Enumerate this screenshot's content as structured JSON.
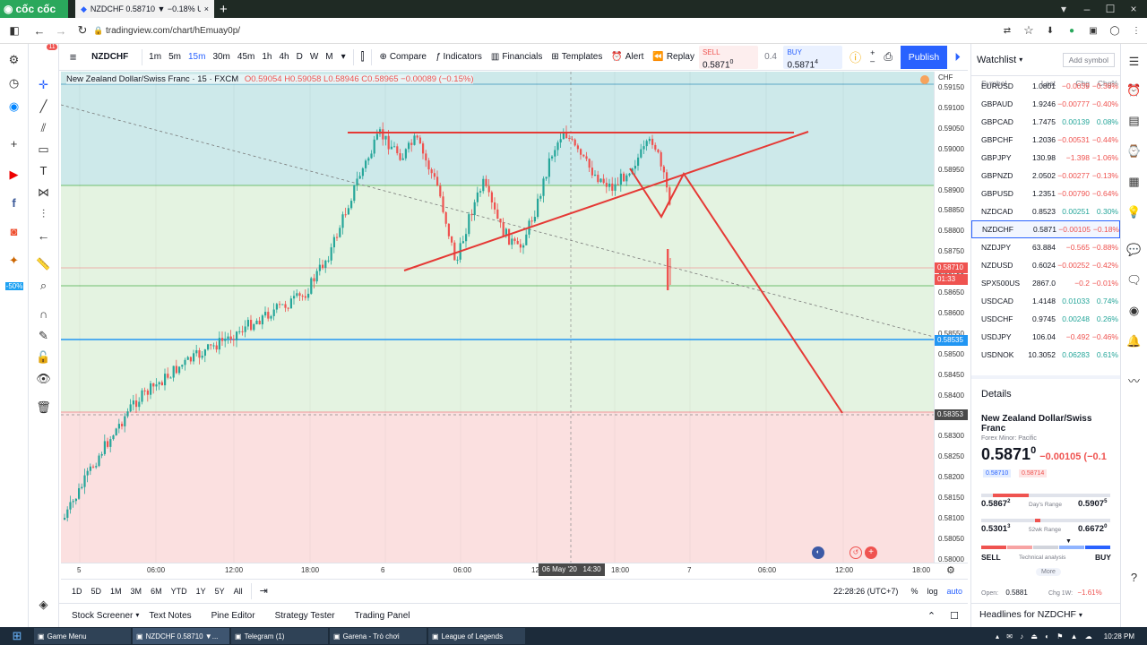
{
  "browser": {
    "brand": "cốc cốc",
    "tab_title": "NZDCHF 0.58710 ▼ −0.18% Unna...",
    "address": "tradingview.com/chart/hEmuay0p/"
  },
  "toolbar": {
    "symbol": "NZDCHF",
    "intervals": [
      "1m",
      "5m",
      "15m",
      "30m",
      "45m",
      "1h",
      "4h",
      "D",
      "W",
      "M"
    ],
    "active_interval": "15m",
    "compare": "Compare",
    "indicators": "Indicators",
    "financials": "Financials",
    "templates": "Templates",
    "alert": "Alert",
    "replay": "Replay",
    "sell_label": "SELL",
    "sell_price": "0.5871",
    "sell_sup": "0",
    "spread": "0.4",
    "buy_label": "BUY",
    "buy_price": "0.5871",
    "buy_sup": "4",
    "publish": "Publish"
  },
  "legend": {
    "name": "New Zealand Dollar/Swiss Franc · 15 · FXCM",
    "o": "O0.59054",
    "h": "H0.59058",
    "l": "L0.58946",
    "c": "C0.58965",
    "chg": "−0.00089 (−0.15%)"
  },
  "price_axis": {
    "currency": "CHF",
    "labels": [
      "0.59150",
      "0.59100",
      "0.59050",
      "0.59000",
      "0.58950",
      "0.58900",
      "0.58850",
      "0.58800",
      "0.58750",
      "0.58700",
      "0.58650",
      "0.58600",
      "0.58550",
      "0.58500",
      "0.58450",
      "0.58400",
      "0.58350",
      "0.58300",
      "0.58250",
      "0.58200",
      "0.58150",
      "0.58100",
      "0.58050",
      "0.58000"
    ],
    "current": "0.58710",
    "countdown": "01:33",
    "blue_line": "0.58535",
    "cursor": "0.58353"
  },
  "time_axis": {
    "labels": [
      "5",
      "06:00",
      "12:00",
      "18:00",
      "6",
      "06:00",
      "12:00",
      "18:00",
      "7",
      "06:00",
      "12:00",
      "18:00"
    ],
    "crosshair": "06 May '20   14:30"
  },
  "range_bar": {
    "ranges": [
      "1D",
      "5D",
      "1M",
      "3M",
      "6M",
      "YTD",
      "1Y",
      "5Y",
      "All"
    ],
    "clock": "22:28:26 (UTC+7)",
    "pct": "%",
    "log": "log",
    "auto": "auto"
  },
  "bottom_tabs": [
    "Stock Screener",
    "Text Notes",
    "Pine Editor",
    "Strategy Tester",
    "Trading Panel"
  ],
  "watchlist": {
    "title": "Watchlist",
    "add": "Add symbol",
    "headers": [
      "Symbol",
      "Last",
      "Chg",
      "Chg%"
    ],
    "rows": [
      {
        "sym": "EURUSD",
        "last": "1.0801",
        "chg": "−0.0039",
        "pct": "−0.36%",
        "up": false
      },
      {
        "sym": "GBPAUD",
        "last": "1.9246",
        "chg": "−0.00777",
        "pct": "−0.40%",
        "up": false
      },
      {
        "sym": "GBPCAD",
        "last": "1.7475",
        "chg": "0.00139",
        "pct": "0.08%",
        "up": true
      },
      {
        "sym": "GBPCHF",
        "last": "1.2036",
        "chg": "−0.00531",
        "pct": "−0.44%",
        "up": false
      },
      {
        "sym": "GBPJPY",
        "last": "130.98",
        "chg": "−1.398",
        "pct": "−1.06%",
        "up": false
      },
      {
        "sym": "GBPNZD",
        "last": "2.0502",
        "chg": "−0.00277",
        "pct": "−0.13%",
        "up": false
      },
      {
        "sym": "GBPUSD",
        "last": "1.2351",
        "chg": "−0.00790",
        "pct": "−0.64%",
        "up": false
      },
      {
        "sym": "NZDCAD",
        "last": "0.8523",
        "chg": "0.00251",
        "pct": "0.30%",
        "up": true
      },
      {
        "sym": "NZDCHF",
        "last": "0.5871",
        "chg": "−0.00105",
        "pct": "−0.18%",
        "up": false
      },
      {
        "sym": "NZDJPY",
        "last": "63.884",
        "chg": "−0.565",
        "pct": "−0.88%",
        "up": false
      },
      {
        "sym": "NZDUSD",
        "last": "0.6024",
        "chg": "−0.00252",
        "pct": "−0.42%",
        "up": false
      },
      {
        "sym": "SPX500US",
        "last": "2867.0",
        "chg": "−0.2",
        "pct": "−0.01%",
        "up": false
      },
      {
        "sym": "USDCAD",
        "last": "1.4148",
        "chg": "0.01033",
        "pct": "0.74%",
        "up": true
      },
      {
        "sym": "USDCHF",
        "last": "0.9745",
        "chg": "0.00248",
        "pct": "0.26%",
        "up": true
      },
      {
        "sym": "USDJPY",
        "last": "106.04",
        "chg": "−0.492",
        "pct": "−0.46%",
        "up": false
      },
      {
        "sym": "USDNOK",
        "last": "10.3052",
        "chg": "0.06283",
        "pct": "0.61%",
        "up": true
      }
    ]
  },
  "details": {
    "title": "Details",
    "name": "New Zealand Dollar/Swiss Franc",
    "market": "Forex Minor: Pacific",
    "price": "0.5871",
    "price_sup": "0",
    "chg": "−0.00105 (−0.1",
    "bid": "0.58710",
    "ask": "0.58714",
    "day_low": "0.5867",
    "day_low_sup": "2",
    "day_range": "Day's Range",
    "day_high": "0.5907",
    "day_high_sup": "5",
    "wk_low": "0.5301",
    "wk_low_sup": "3",
    "wk_range": "52wk Range",
    "wk_high": "0.6672",
    "wk_high_sup": "0",
    "sell": "SELL",
    "tech": "Technical analysis",
    "buy": "BUY",
    "more": "More",
    "open_label": "Open:",
    "open": "0.5881",
    "chg1w_label": "Chg 1W:",
    "chg1w": "−1.61%"
  },
  "headlines": "Headlines for NZDCHF",
  "taskbar": {
    "items": [
      "Game Menu",
      "NZDCHF 0.58710 ▼...",
      "Telegram (1)",
      "Garena - Trò chơi",
      "League of Legends"
    ],
    "clock": "10:28 PM"
  }
}
